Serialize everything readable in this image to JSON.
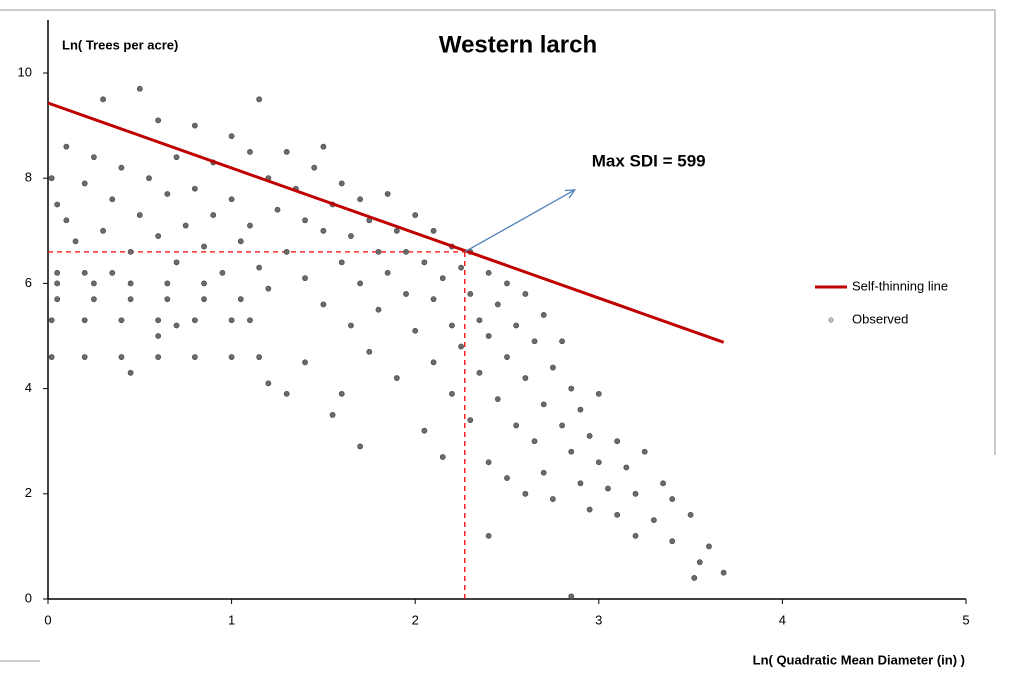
{
  "chart_data": {
    "type": "scatter",
    "title": "Western larch",
    "y_label": "Ln( Trees per acre)",
    "x_label": "Ln( Quadratic Mean Diameter (in) )",
    "annotation": "Max SDI = 599",
    "xlim": [
      0,
      5
    ],
    "xticks": [
      0,
      1,
      2,
      3,
      4,
      5
    ],
    "ylim": [
      0,
      10
    ],
    "yticks": [
      0,
      2,
      4,
      6,
      8,
      10
    ],
    "grid": false,
    "legend": "right",
    "reference_point": {
      "x": 2.27,
      "y": 6.6,
      "color": "#ff0000"
    },
    "series": [
      {
        "name": "Self-thinning line",
        "type": "line",
        "color": "#c00000",
        "x": [
          0,
          3.68
        ],
        "values": [
          9.43,
          4.88
        ]
      },
      {
        "name": "Observed",
        "type": "scatter",
        "color": "#6b6b6b",
        "x": [
          0.02,
          0.2,
          0.4,
          0.6,
          0.8,
          1.0,
          1.15,
          0.02,
          0.2,
          0.4,
          0.6,
          0.8,
          1.0,
          1.1,
          0.05,
          0.25,
          0.45,
          0.65,
          0.85,
          1.05,
          0.05,
          0.25,
          0.45,
          0.65,
          0.85,
          0.05,
          0.2,
          0.35,
          0.02,
          0.05,
          0.1,
          0.1,
          0.15,
          0.2,
          0.25,
          0.3,
          0.3,
          0.35,
          0.4,
          0.45,
          0.5,
          0.5,
          0.55,
          0.6,
          0.6,
          0.65,
          0.7,
          0.7,
          0.75,
          0.8,
          0.8,
          0.85,
          0.9,
          0.9,
          0.95,
          1.0,
          1.0,
          1.05,
          1.1,
          1.1,
          1.15,
          1.15,
          0.6,
          0.7,
          1.2,
          1.3,
          0.45,
          1.2,
          1.25,
          1.3,
          1.3,
          1.35,
          1.4,
          1.4,
          1.45,
          1.5,
          1.5,
          1.5,
          1.55,
          1.6,
          1.6,
          1.65,
          1.65,
          1.7,
          1.7,
          1.75,
          1.75,
          1.8,
          1.8,
          1.85,
          1.85,
          1.9,
          1.9,
          1.95,
          1.95,
          2.0,
          2.0,
          1.4,
          1.6,
          1.7,
          1.55,
          2.05,
          2.05,
          2.1,
          2.1,
          2.1,
          2.15,
          2.15,
          2.2,
          2.2,
          2.2,
          2.25,
          2.25,
          2.3,
          2.3,
          2.3,
          2.35,
          2.35,
          2.4,
          2.4,
          2.4,
          2.45,
          2.45,
          2.5,
          2.5,
          2.5,
          2.55,
          2.55,
          2.6,
          2.6,
          2.6,
          2.65,
          2.65,
          2.7,
          2.7,
          2.7,
          2.75,
          2.75,
          2.8,
          2.8,
          2.85,
          2.85,
          2.9,
          2.9,
          2.95,
          2.95,
          3.0,
          3.0,
          3.05,
          3.1,
          3.1,
          3.15,
          3.2,
          3.2,
          3.25,
          3.3,
          3.35,
          3.4,
          3.4,
          3.5,
          3.52,
          3.55,
          3.6,
          3.68,
          2.85,
          2.4,
          1.2
        ],
        "values": [
          4.6,
          4.6,
          4.6,
          4.6,
          4.6,
          4.6,
          4.6,
          5.3,
          5.3,
          5.3,
          5.3,
          5.3,
          5.3,
          5.3,
          5.7,
          5.7,
          5.7,
          5.7,
          5.7,
          5.7,
          6.0,
          6.0,
          6.0,
          6.0,
          6.0,
          6.2,
          6.2,
          6.2,
          8.0,
          7.5,
          7.2,
          8.6,
          6.8,
          7.9,
          8.4,
          9.5,
          7.0,
          7.6,
          8.2,
          6.6,
          9.7,
          7.3,
          8.0,
          9.1,
          6.9,
          7.7,
          8.4,
          6.4,
          7.1,
          9.0,
          7.8,
          6.7,
          8.3,
          7.3,
          6.2,
          8.8,
          7.6,
          6.8,
          8.5,
          7.1,
          9.5,
          6.3,
          5.0,
          5.2,
          4.1,
          3.9,
          4.3,
          8.0,
          7.4,
          6.6,
          8.5,
          7.8,
          6.1,
          7.2,
          8.2,
          7.0,
          5.6,
          8.6,
          7.5,
          6.4,
          7.9,
          5.2,
          6.9,
          7.6,
          6.0,
          4.7,
          7.2,
          6.6,
          5.5,
          7.7,
          6.2,
          4.2,
          7.0,
          5.8,
          6.6,
          7.3,
          5.1,
          4.5,
          3.9,
          2.9,
          3.5,
          6.4,
          3.2,
          7.0,
          5.7,
          4.5,
          6.1,
          2.7,
          6.7,
          5.2,
          3.9,
          6.3,
          4.8,
          5.8,
          6.6,
          3.4,
          5.3,
          4.3,
          6.2,
          5.0,
          2.6,
          5.6,
          3.8,
          4.6,
          6.0,
          2.3,
          5.2,
          3.3,
          4.2,
          5.8,
          2.0,
          4.9,
          3.0,
          3.7,
          5.4,
          2.4,
          4.4,
          1.9,
          3.3,
          4.9,
          2.8,
          4.0,
          3.6,
          2.2,
          3.1,
          1.7,
          2.6,
          3.9,
          2.1,
          3.0,
          1.6,
          2.5,
          1.2,
          2.0,
          2.8,
          1.5,
          2.2,
          1.1,
          1.9,
          1.6,
          0.4,
          0.7,
          1.0,
          0.5,
          0.05,
          1.2,
          5.9
        ]
      }
    ]
  }
}
